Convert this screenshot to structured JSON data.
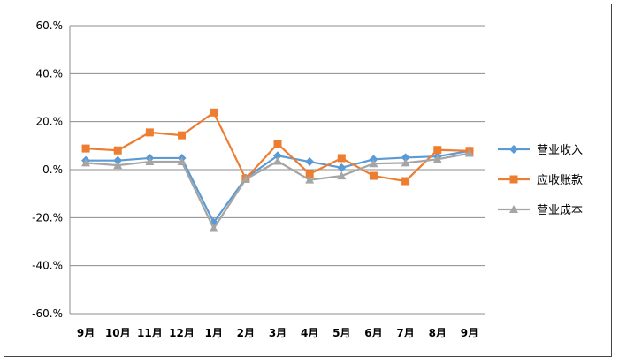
{
  "chart_data": {
    "type": "line",
    "title": "",
    "xlabel": "",
    "ylabel": "",
    "categories": [
      "9月",
      "10月",
      "11月",
      "12月",
      "1月",
      "2月",
      "3月",
      "4月",
      "5月",
      "6月",
      "7月",
      "8月",
      "9月"
    ],
    "ylim": [
      -60,
      60
    ],
    "yticks": [
      60,
      40,
      20,
      0,
      -20,
      -40,
      -60
    ],
    "ytick_labels": [
      "60.%",
      "40.%",
      "20.%",
      "0.%",
      "-20.%",
      "-40.%",
      "-60.%"
    ],
    "grid": true,
    "legend_position": "right",
    "series": [
      {
        "name": "营业收入",
        "color": "#5B9BD5",
        "marker": "diamond",
        "values": [
          3.8,
          3.8,
          4.8,
          4.8,
          -22.0,
          -3.5,
          5.8,
          3.3,
          0.8,
          4.3,
          5.0,
          5.5,
          7.8
        ]
      },
      {
        "name": "应收账款",
        "color": "#ED7D31",
        "marker": "square",
        "values": [
          8.8,
          8.0,
          15.5,
          14.3,
          23.8,
          -3.8,
          10.8,
          -1.8,
          4.8,
          -2.6,
          -4.8,
          8.2,
          7.8
        ]
      },
      {
        "name": "营业成本",
        "color": "#A5A5A5",
        "marker": "triangle",
        "values": [
          2.8,
          1.8,
          3.3,
          3.3,
          -24.5,
          -4.0,
          3.5,
          -4.3,
          -2.6,
          2.5,
          2.8,
          4.3,
          6.8
        ]
      }
    ]
  }
}
